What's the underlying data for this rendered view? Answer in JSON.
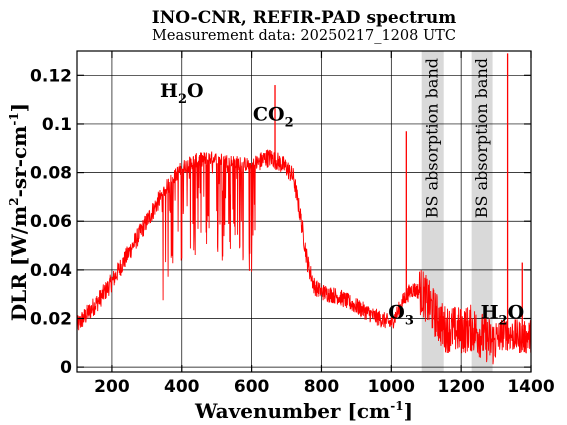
{
  "chart_data": {
    "type": "line",
    "title": "INO-CNR, REFIR-PAD spectrum",
    "subtitle": "Measurement data: 20250217_1208 UTC",
    "xlabel": {
      "main": "Wavenumber [cm",
      "sup": "-1",
      "tail": "]"
    },
    "ylabel": {
      "main": "DLR [W/m",
      "sup1": "2",
      "mid": "-sr-cm",
      "sup2": "-1",
      "tail": "]"
    },
    "xlim": [
      100,
      1400
    ],
    "ylim": [
      -0.002,
      0.13
    ],
    "xticks": [
      200,
      400,
      600,
      800,
      1000,
      1200,
      1400
    ],
    "xtick_labels": [
      "200",
      "400",
      "600",
      "800",
      "1000",
      "1200",
      "1400"
    ],
    "yticks": [
      0,
      0.02,
      0.04,
      0.06,
      0.08,
      0.1,
      0.12
    ],
    "ytick_labels": [
      "0",
      "0.02",
      "0.04",
      "0.06",
      "0.08",
      "0.1",
      "0.12"
    ],
    "grid": true,
    "line_color": "#ff0000",
    "band_color": "#d9d9d9",
    "shaded_bands": [
      {
        "x0": 1087,
        "x1": 1150,
        "label": "BS absorption band"
      },
      {
        "x0": 1230,
        "x1": 1290,
        "label": "BS absorption band"
      }
    ],
    "annotations": [
      {
        "base": "H",
        "sub": "2",
        "tail": "O",
        "x": 400,
        "y": 0.111
      },
      {
        "base": "CO",
        "sub": "2",
        "tail": "",
        "x": 662,
        "y": 0.1015
      },
      {
        "base": "O",
        "sub": "3",
        "tail": "",
        "x": 1028,
        "y": 0.02
      },
      {
        "base": "H",
        "sub": "2",
        "tail": "O",
        "x": 1318,
        "y": 0.02
      }
    ],
    "series": [
      {
        "x": [
          100,
          130,
          160,
          200,
          240,
          280,
          320,
          360,
          400,
          440,
          480,
          520,
          560,
          600,
          620,
          640,
          660,
          680,
          700,
          720,
          740,
          760,
          780,
          800,
          850,
          900,
          950,
          1000,
          1020,
          1040,
          1060,
          1087,
          1150,
          1200,
          1230,
          1290,
          1320,
          1350,
          1380,
          1400
        ],
        "y": [
          0.017,
          0.022,
          0.027,
          0.035,
          0.045,
          0.055,
          0.065,
          0.075,
          0.082,
          0.085,
          0.086,
          0.085,
          0.084,
          0.083,
          0.084,
          0.086,
          0.086,
          0.084,
          0.082,
          0.078,
          0.062,
          0.043,
          0.033,
          0.031,
          0.029,
          0.025,
          0.021,
          0.018,
          0.023,
          0.029,
          0.032,
          0.031,
          0.016,
          0.015,
          0.016,
          0.01,
          0.014,
          0.013,
          0.012,
          0.013
        ]
      }
    ],
    "spikes": [
      {
        "x": 667,
        "y": 0.116
      },
      {
        "x": 1043,
        "y": 0.097
      },
      {
        "x": 1333,
        "y": 0.129
      },
      {
        "x": 1375,
        "y": 0.043
      }
    ]
  }
}
